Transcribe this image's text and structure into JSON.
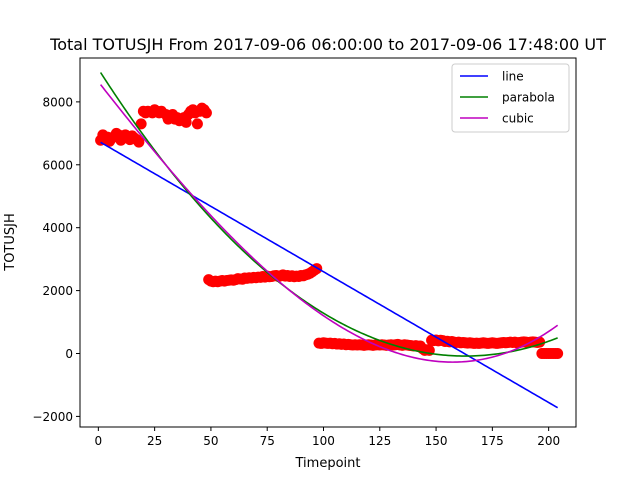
{
  "chart_data": {
    "type": "scatter",
    "title": "Total TOTUSJH From 2017-09-06 06:00:00 to 2017-09-06 17:48:00 UT",
    "xlabel": "Timepoint",
    "ylabel": "TOTUSJH",
    "xlim": [
      -8.15,
      212.15
    ],
    "ylim": [
      -2337,
      9395
    ],
    "xticks": [
      0,
      25,
      50,
      75,
      100,
      125,
      150,
      175,
      200
    ],
    "yticks": [
      -2000,
      0,
      2000,
      4000,
      6000,
      8000
    ],
    "xtick_labels": [
      "0",
      "25",
      "50",
      "75",
      "100",
      "125",
      "150",
      "175",
      "200"
    ],
    "ytick_labels": [
      "−2000",
      "0",
      "2000",
      "4000",
      "6000",
      "8000"
    ],
    "legend_position": "top-right",
    "grid": false,
    "scatter_color": "#ff0000",
    "series": [
      {
        "name": "line",
        "kind": "fit",
        "color": "#0000ff",
        "coefficients": [
          6756.0,
          -41.57
        ]
      },
      {
        "name": "parabola",
        "kind": "fit",
        "color": "#008000",
        "coefficients": [
          9045.57,
          -112.0,
          0.3436
        ]
      },
      {
        "name": "cubic",
        "kind": "fit",
        "color": "#bf00bf",
        "coefficients": [
          8639.4,
          -91.48,
          0.0829,
          0.00088
        ]
      }
    ],
    "fit_x_range": [
      1,
      204
    ],
    "points": [
      {
        "x": 1,
        "y": 6780
      },
      {
        "x": 2,
        "y": 6950
      },
      {
        "x": 3,
        "y": 6800
      },
      {
        "x": 4,
        "y": 6880
      },
      {
        "x": 5,
        "y": 6750
      },
      {
        "x": 6,
        "y": 6850
      },
      {
        "x": 7,
        "y": 6900
      },
      {
        "x": 8,
        "y": 7000
      },
      {
        "x": 9,
        "y": 6950
      },
      {
        "x": 10,
        "y": 6780
      },
      {
        "x": 11,
        "y": 6900
      },
      {
        "x": 12,
        "y": 6950
      },
      {
        "x": 13,
        "y": 6850
      },
      {
        "x": 14,
        "y": 6800
      },
      {
        "x": 15,
        "y": 6920
      },
      {
        "x": 16,
        "y": 6850
      },
      {
        "x": 17,
        "y": 6800
      },
      {
        "x": 18,
        "y": 6720
      },
      {
        "x": 19,
        "y": 7300
      },
      {
        "x": 20,
        "y": 7700
      },
      {
        "x": 21,
        "y": 7650
      },
      {
        "x": 22,
        "y": 7700
      },
      {
        "x": 24,
        "y": 7650
      },
      {
        "x": 25,
        "y": 7750
      },
      {
        "x": 26,
        "y": 7700
      },
      {
        "x": 27,
        "y": 7650
      },
      {
        "x": 28,
        "y": 7700
      },
      {
        "x": 30,
        "y": 7600
      },
      {
        "x": 31,
        "y": 7450
      },
      {
        "x": 32,
        "y": 7500
      },
      {
        "x": 33,
        "y": 7600
      },
      {
        "x": 34,
        "y": 7450
      },
      {
        "x": 35,
        "y": 7500
      },
      {
        "x": 36,
        "y": 7400
      },
      {
        "x": 37,
        "y": 7450
      },
      {
        "x": 38,
        "y": 7500
      },
      {
        "x": 39,
        "y": 7350
      },
      {
        "x": 40,
        "y": 7600
      },
      {
        "x": 41,
        "y": 7700
      },
      {
        "x": 42,
        "y": 7750
      },
      {
        "x": 43,
        "y": 7650
      },
      {
        "x": 44,
        "y": 7300
      },
      {
        "x": 45,
        "y": 7700
      },
      {
        "x": 46,
        "y": 7800
      },
      {
        "x": 47,
        "y": 7750
      },
      {
        "x": 48,
        "y": 7650
      },
      {
        "x": 49,
        "y": 2350
      },
      {
        "x": 50,
        "y": 2300
      },
      {
        "x": 51,
        "y": 2280
      },
      {
        "x": 52,
        "y": 2300
      },
      {
        "x": 53,
        "y": 2280
      },
      {
        "x": 54,
        "y": 2300
      },
      {
        "x": 55,
        "y": 2320
      },
      {
        "x": 56,
        "y": 2300
      },
      {
        "x": 57,
        "y": 2320
      },
      {
        "x": 58,
        "y": 2330
      },
      {
        "x": 59,
        "y": 2340
      },
      {
        "x": 60,
        "y": 2330
      },
      {
        "x": 61,
        "y": 2350
      },
      {
        "x": 62,
        "y": 2380
      },
      {
        "x": 63,
        "y": 2370
      },
      {
        "x": 64,
        "y": 2360
      },
      {
        "x": 65,
        "y": 2400
      },
      {
        "x": 66,
        "y": 2390
      },
      {
        "x": 67,
        "y": 2410
      },
      {
        "x": 68,
        "y": 2400
      },
      {
        "x": 69,
        "y": 2420
      },
      {
        "x": 70,
        "y": 2410
      },
      {
        "x": 71,
        "y": 2430
      },
      {
        "x": 72,
        "y": 2420
      },
      {
        "x": 73,
        "y": 2450
      },
      {
        "x": 74,
        "y": 2430
      },
      {
        "x": 75,
        "y": 2460
      },
      {
        "x": 76,
        "y": 2440
      },
      {
        "x": 77,
        "y": 2450
      },
      {
        "x": 78,
        "y": 2470
      },
      {
        "x": 79,
        "y": 2480
      },
      {
        "x": 80,
        "y": 2450
      },
      {
        "x": 81,
        "y": 2470
      },
      {
        "x": 82,
        "y": 2500
      },
      {
        "x": 83,
        "y": 2460
      },
      {
        "x": 84,
        "y": 2480
      },
      {
        "x": 85,
        "y": 2450
      },
      {
        "x": 86,
        "y": 2470
      },
      {
        "x": 87,
        "y": 2440
      },
      {
        "x": 88,
        "y": 2460
      },
      {
        "x": 89,
        "y": 2450
      },
      {
        "x": 90,
        "y": 2480
      },
      {
        "x": 91,
        "y": 2470
      },
      {
        "x": 92,
        "y": 2500
      },
      {
        "x": 93,
        "y": 2520
      },
      {
        "x": 94,
        "y": 2550
      },
      {
        "x": 95,
        "y": 2600
      },
      {
        "x": 96,
        "y": 2650
      },
      {
        "x": 97,
        "y": 2700
      },
      {
        "x": 98,
        "y": 330
      },
      {
        "x": 99,
        "y": 320
      },
      {
        "x": 100,
        "y": 340
      },
      {
        "x": 101,
        "y": 330
      },
      {
        "x": 102,
        "y": 320
      },
      {
        "x": 103,
        "y": 330
      },
      {
        "x": 104,
        "y": 310
      },
      {
        "x": 105,
        "y": 320
      },
      {
        "x": 106,
        "y": 300
      },
      {
        "x": 107,
        "y": 310
      },
      {
        "x": 108,
        "y": 290
      },
      {
        "x": 109,
        "y": 300
      },
      {
        "x": 110,
        "y": 280
      },
      {
        "x": 111,
        "y": 290
      },
      {
        "x": 112,
        "y": 280
      },
      {
        "x": 113,
        "y": 270
      },
      {
        "x": 114,
        "y": 280
      },
      {
        "x": 115,
        "y": 270
      },
      {
        "x": 116,
        "y": 280
      },
      {
        "x": 117,
        "y": 270
      },
      {
        "x": 118,
        "y": 260
      },
      {
        "x": 119,
        "y": 270
      },
      {
        "x": 120,
        "y": 280
      },
      {
        "x": 121,
        "y": 270
      },
      {
        "x": 122,
        "y": 260
      },
      {
        "x": 123,
        "y": 270
      },
      {
        "x": 124,
        "y": 280
      },
      {
        "x": 125,
        "y": 270
      },
      {
        "x": 126,
        "y": 280
      },
      {
        "x": 127,
        "y": 270
      },
      {
        "x": 128,
        "y": 260
      },
      {
        "x": 129,
        "y": 270
      },
      {
        "x": 130,
        "y": 280
      },
      {
        "x": 131,
        "y": 270
      },
      {
        "x": 132,
        "y": 280
      },
      {
        "x": 133,
        "y": 290
      },
      {
        "x": 134,
        "y": 270
      },
      {
        "x": 135,
        "y": 260
      },
      {
        "x": 136,
        "y": 280
      },
      {
        "x": 137,
        "y": 270
      },
      {
        "x": 138,
        "y": 260
      },
      {
        "x": 139,
        "y": 250
      },
      {
        "x": 140,
        "y": 240
      },
      {
        "x": 141,
        "y": 250
      },
      {
        "x": 142,
        "y": 230
      },
      {
        "x": 143,
        "y": 240
      },
      {
        "x": 144,
        "y": 150
      },
      {
        "x": 145,
        "y": 100
      },
      {
        "x": 146,
        "y": 120
      },
      {
        "x": 147,
        "y": 100
      },
      {
        "x": 148,
        "y": 420
      },
      {
        "x": 149,
        "y": 410
      },
      {
        "x": 150,
        "y": 430
      },
      {
        "x": 151,
        "y": 400
      },
      {
        "x": 152,
        "y": 420
      },
      {
        "x": 153,
        "y": 410
      },
      {
        "x": 154,
        "y": 380
      },
      {
        "x": 155,
        "y": 390
      },
      {
        "x": 156,
        "y": 370
      },
      {
        "x": 157,
        "y": 380
      },
      {
        "x": 158,
        "y": 360
      },
      {
        "x": 159,
        "y": 350
      },
      {
        "x": 160,
        "y": 360
      },
      {
        "x": 161,
        "y": 340
      },
      {
        "x": 162,
        "y": 350
      },
      {
        "x": 163,
        "y": 340
      },
      {
        "x": 164,
        "y": 330
      },
      {
        "x": 165,
        "y": 340
      },
      {
        "x": 166,
        "y": 330
      },
      {
        "x": 167,
        "y": 320
      },
      {
        "x": 168,
        "y": 330
      },
      {
        "x": 169,
        "y": 320
      },
      {
        "x": 170,
        "y": 330
      },
      {
        "x": 171,
        "y": 340
      },
      {
        "x": 172,
        "y": 330
      },
      {
        "x": 173,
        "y": 320
      },
      {
        "x": 174,
        "y": 330
      },
      {
        "x": 175,
        "y": 340
      },
      {
        "x": 176,
        "y": 330
      },
      {
        "x": 177,
        "y": 320
      },
      {
        "x": 178,
        "y": 330
      },
      {
        "x": 179,
        "y": 340
      },
      {
        "x": 180,
        "y": 350
      },
      {
        "x": 181,
        "y": 340
      },
      {
        "x": 182,
        "y": 350
      },
      {
        "x": 183,
        "y": 360
      },
      {
        "x": 184,
        "y": 350
      },
      {
        "x": 185,
        "y": 360
      },
      {
        "x": 186,
        "y": 340
      },
      {
        "x": 187,
        "y": 350
      },
      {
        "x": 188,
        "y": 360
      },
      {
        "x": 189,
        "y": 370
      },
      {
        "x": 190,
        "y": 360
      },
      {
        "x": 191,
        "y": 350
      },
      {
        "x": 192,
        "y": 360
      },
      {
        "x": 193,
        "y": 370
      },
      {
        "x": 194,
        "y": 360
      },
      {
        "x": 195,
        "y": 350
      },
      {
        "x": 196,
        "y": 360
      },
      {
        "x": 197,
        "y": 0
      },
      {
        "x": 198,
        "y": 0
      },
      {
        "x": 199,
        "y": 0
      },
      {
        "x": 200,
        "y": 0
      },
      {
        "x": 201,
        "y": 0
      },
      {
        "x": 202,
        "y": 0
      },
      {
        "x": 203,
        "y": 0
      },
      {
        "x": 204,
        "y": 0
      }
    ]
  }
}
